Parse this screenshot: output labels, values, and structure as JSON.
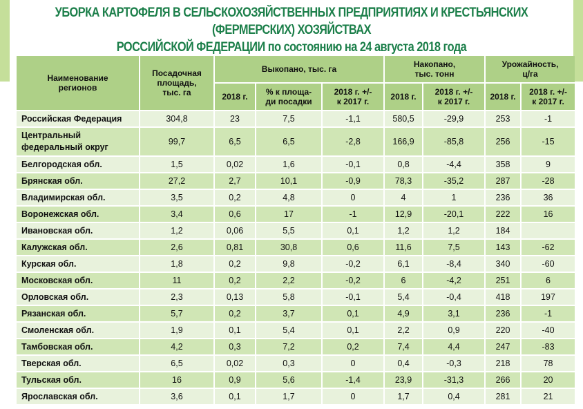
{
  "title": {
    "line1": "УБОРКА КАРТОФЕЛЯ В СЕЛЬСКОХОЗЯЙСТВЕННЫХ ПРЕДПРИЯТИЯХ И КРЕСТЬЯНСКИХ (ФЕРМЕРСКИХ) ХОЗЯЙСТВАХ",
    "line2_upper": "РОССИЙСКОЙ ФЕДЕРАЦИИ",
    "line2_rest": " по состоянию на 24 августа 2018 года"
  },
  "headers": {
    "region": "Наименование\nрегионов",
    "area": "Посадочная\nплощадь,\nтыс. га",
    "dug": "Выкопано, тыс. га",
    "accum": "Накопано,\nтыс. тонн",
    "yield": "Урожайность,\nц/га",
    "dug_2018": "2018 г.",
    "dug_pct": "% к площа-\nди посадки",
    "dug_diff": "2018 г. +/-\nк 2017 г.",
    "accum_2018": "2018 г.",
    "accum_diff": "2018 г. +/-\nк 2017 г.",
    "yield_2018": "2018 г.",
    "yield_diff": "2018 г. +/-\nк 2017 г."
  },
  "rows": [
    {
      "region": "Российская Федерация",
      "area": "304,8",
      "dug": "23",
      "pct": "7,5",
      "dug_diff": "-1,1",
      "accum": "580,5",
      "accum_diff": "-29,9",
      "yield": "253",
      "yield_diff": "-1"
    },
    {
      "region": "Центральный\nфедеральный округ",
      "area": "99,7",
      "dug": "6,5",
      "pct": "6,5",
      "dug_diff": "-2,8",
      "accum": "166,9",
      "accum_diff": "-85,8",
      "yield": "256",
      "yield_diff": "-15"
    },
    {
      "region": "Белгородская обл.",
      "area": "1,5",
      "dug": "0,02",
      "pct": "1,6",
      "dug_diff": "-0,1",
      "accum": "0,8",
      "accum_diff": "-4,4",
      "yield": "358",
      "yield_diff": "9"
    },
    {
      "region": "Брянская обл.",
      "area": "27,2",
      "dug": "2,7",
      "pct": "10,1",
      "dug_diff": "-0,9",
      "accum": "78,3",
      "accum_diff": "-35,2",
      "yield": "287",
      "yield_diff": "-28"
    },
    {
      "region": "Владимирская обл.",
      "area": "3,5",
      "dug": "0,2",
      "pct": "4,8",
      "dug_diff": "0",
      "accum": "4",
      "accum_diff": "1",
      "yield": "236",
      "yield_diff": "36"
    },
    {
      "region": "Воронежская обл.",
      "area": "3,4",
      "dug": "0,6",
      "pct": "17",
      "dug_diff": "-1",
      "accum": "12,9",
      "accum_diff": "-20,1",
      "yield": "222",
      "yield_diff": "16"
    },
    {
      "region": "Ивановская обл.",
      "area": "1,2",
      "dug": "0,06",
      "pct": "5,5",
      "dug_diff": "0,1",
      "accum": "1,2",
      "accum_diff": "1,2",
      "yield": "184",
      "yield_diff": ""
    },
    {
      "region": "Калужская обл.",
      "area": "2,6",
      "dug": "0,81",
      "pct": "30,8",
      "dug_diff": "0,6",
      "accum": "11,6",
      "accum_diff": "7,5",
      "yield": "143",
      "yield_diff": "-62"
    },
    {
      "region": "Курская обл.",
      "area": "1,8",
      "dug": "0,2",
      "pct": "9,8",
      "dug_diff": "-0,2",
      "accum": "6,1",
      "accum_diff": "-8,4",
      "yield": "340",
      "yield_diff": "-60"
    },
    {
      "region": "Московская обл.",
      "area": "11",
      "dug": "0,2",
      "pct": "2,2",
      "dug_diff": "-0,2",
      "accum": "6",
      "accum_diff": "-4,2",
      "yield": "251",
      "yield_diff": "6"
    },
    {
      "region": "Орловская обл.",
      "area": "2,3",
      "dug": "0,13",
      "pct": "5,8",
      "dug_diff": "-0,1",
      "accum": "5,4",
      "accum_diff": "-0,4",
      "yield": "418",
      "yield_diff": "197"
    },
    {
      "region": "Рязанская обл.",
      "area": "5,7",
      "dug": "0,2",
      "pct": "3,7",
      "dug_diff": "0,1",
      "accum": "4,9",
      "accum_diff": "3,1",
      "yield": "236",
      "yield_diff": "-1"
    },
    {
      "region": "Смоленская обл.",
      "area": "1,9",
      "dug": "0,1",
      "pct": "5,4",
      "dug_diff": "0,1",
      "accum": "2,2",
      "accum_diff": "0,9",
      "yield": "220",
      "yield_diff": "-40"
    },
    {
      "region": "Тамбовская обл.",
      "area": "4,2",
      "dug": "0,3",
      "pct": "7,2",
      "dug_diff": "0,2",
      "accum": "7,4",
      "accum_diff": "4,4",
      "yield": "247",
      "yield_diff": "-83"
    },
    {
      "region": "Тверская обл.",
      "area": "6,5",
      "dug": "0,02",
      "pct": "0,3",
      "dug_diff": "0",
      "accum": "0,4",
      "accum_diff": "-0,3",
      "yield": "218",
      "yield_diff": "78"
    },
    {
      "region": "Тульская обл.",
      "area": "16",
      "dug": "0,9",
      "pct": "5,6",
      "dug_diff": "-1,4",
      "accum": "23,9",
      "accum_diff": "-31,3",
      "yield": "266",
      "yield_diff": "20"
    },
    {
      "region": "Ярославская обл.",
      "area": "3,6",
      "dug": "0,1",
      "pct": "1,7",
      "dug_diff": "0",
      "accum": "1,7",
      "accum_diff": "0,4",
      "yield": "281",
      "yield_diff": "21"
    }
  ],
  "colors": {
    "title": "#1c7f4a",
    "header_bg": "#aed087",
    "row_light": "#e8f2dc",
    "row_dark": "#d0e6b5",
    "side_band": "#c5df9a"
  }
}
